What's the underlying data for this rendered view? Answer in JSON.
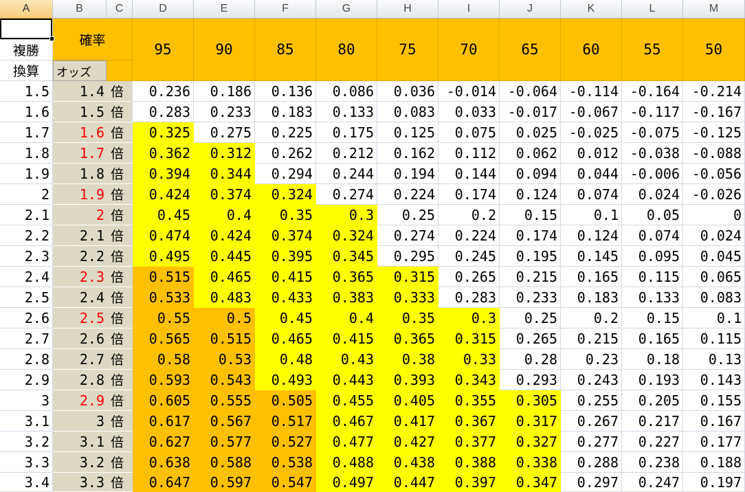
{
  "columns": [
    "A",
    "B",
    "C",
    "D",
    "E",
    "F",
    "G",
    "H",
    "I",
    "J",
    "K",
    "L",
    "M"
  ],
  "header": {
    "probability_label": "確率",
    "label_fukusho": "複勝",
    "label_kansan": "換算",
    "odds_label": "オッズ",
    "probabilities": [
      95,
      90,
      85,
      80,
      75,
      70,
      65,
      60,
      55,
      50
    ]
  },
  "unit": "倍",
  "rows": [
    {
      "fukusho": 1.5,
      "odds": 1.4,
      "odds_color": "#000000",
      "values": [
        0.236,
        0.186,
        0.136,
        0.086,
        0.036,
        -0.014,
        -0.064,
        -0.114,
        -0.164,
        -0.214
      ]
    },
    {
      "fukusho": 1.6,
      "odds": 1.5,
      "odds_color": "#000000",
      "values": [
        0.283,
        0.233,
        0.183,
        0.133,
        0.083,
        0.033,
        -0.017,
        -0.067,
        -0.117,
        -0.167
      ]
    },
    {
      "fukusho": 1.7,
      "odds": 1.6,
      "odds_color": "#FF0000",
      "values": [
        0.325,
        0.275,
        0.225,
        0.175,
        0.125,
        0.075,
        0.025,
        -0.025,
        -0.075,
        -0.125
      ]
    },
    {
      "fukusho": 1.8,
      "odds": 1.7,
      "odds_color": "#FF0000",
      "values": [
        0.362,
        0.312,
        0.262,
        0.212,
        0.162,
        0.112,
        0.062,
        0.012,
        -0.038,
        -0.088
      ]
    },
    {
      "fukusho": 1.9,
      "odds": 1.8,
      "odds_color": "#000000",
      "values": [
        0.394,
        0.344,
        0.294,
        0.244,
        0.194,
        0.144,
        0.094,
        0.044,
        -0.006,
        -0.056
      ]
    },
    {
      "fukusho": 2,
      "odds": 1.9,
      "odds_color": "#FF0000",
      "values": [
        0.424,
        0.374,
        0.324,
        0.274,
        0.224,
        0.174,
        0.124,
        0.074,
        0.024,
        -0.026
      ]
    },
    {
      "fukusho": 2.1,
      "odds": 2,
      "odds_color": "#FF0000",
      "values": [
        0.45,
        0.4,
        0.35,
        0.3,
        0.25,
        0.2,
        0.15,
        0.1,
        0.05,
        0
      ]
    },
    {
      "fukusho": 2.2,
      "odds": 2.1,
      "odds_color": "#000000",
      "values": [
        0.474,
        0.424,
        0.374,
        0.324,
        0.274,
        0.224,
        0.174,
        0.124,
        0.074,
        0.024
      ]
    },
    {
      "fukusho": 2.3,
      "odds": 2.2,
      "odds_color": "#000000",
      "values": [
        0.495,
        0.445,
        0.395,
        0.345,
        0.295,
        0.245,
        0.195,
        0.145,
        0.095,
        0.045
      ]
    },
    {
      "fukusho": 2.4,
      "odds": 2.3,
      "odds_color": "#FF0000",
      "values": [
        0.515,
        0.465,
        0.415,
        0.365,
        0.315,
        0.265,
        0.215,
        0.165,
        0.115,
        0.065
      ]
    },
    {
      "fukusho": 2.5,
      "odds": 2.4,
      "odds_color": "#000000",
      "values": [
        0.533,
        0.483,
        0.433,
        0.383,
        0.333,
        0.283,
        0.233,
        0.183,
        0.133,
        0.083
      ]
    },
    {
      "fukusho": 2.6,
      "odds": 2.5,
      "odds_color": "#FF0000",
      "values": [
        0.55,
        0.5,
        0.45,
        0.4,
        0.35,
        0.3,
        0.25,
        0.2,
        0.15,
        0.1
      ]
    },
    {
      "fukusho": 2.7,
      "odds": 2.6,
      "odds_color": "#000000",
      "values": [
        0.565,
        0.515,
        0.465,
        0.415,
        0.365,
        0.315,
        0.265,
        0.215,
        0.165,
        0.115
      ]
    },
    {
      "fukusho": 2.8,
      "odds": 2.7,
      "odds_color": "#000000",
      "values": [
        0.58,
        0.53,
        0.48,
        0.43,
        0.38,
        0.33,
        0.28,
        0.23,
        0.18,
        0.13
      ]
    },
    {
      "fukusho": 2.9,
      "odds": 2.8,
      "odds_color": "#000000",
      "values": [
        0.593,
        0.543,
        0.493,
        0.443,
        0.393,
        0.343,
        0.293,
        0.243,
        0.193,
        0.143
      ]
    },
    {
      "fukusho": 3,
      "odds": 2.9,
      "odds_color": "#FF0000",
      "values": [
        0.605,
        0.555,
        0.505,
        0.455,
        0.405,
        0.355,
        0.305,
        0.255,
        0.205,
        0.155
      ]
    },
    {
      "fukusho": 3.1,
      "odds": 3,
      "odds_color": "#000000",
      "values": [
        0.617,
        0.567,
        0.517,
        0.467,
        0.417,
        0.367,
        0.317,
        0.267,
        0.217,
        0.167
      ]
    },
    {
      "fukusho": 3.2,
      "odds": 3.1,
      "odds_color": "#000000",
      "values": [
        0.627,
        0.577,
        0.527,
        0.477,
        0.427,
        0.377,
        0.327,
        0.277,
        0.227,
        0.177
      ]
    },
    {
      "fukusho": 3.3,
      "odds": 3.2,
      "odds_color": "#000000",
      "values": [
        0.638,
        0.588,
        0.538,
        0.488,
        0.438,
        0.388,
        0.338,
        0.288,
        0.238,
        0.188
      ]
    },
    {
      "fukusho": 3.4,
      "odds": 3.3,
      "odds_color": "#000000",
      "values": [
        0.647,
        0.597,
        0.547,
        0.497,
        0.447,
        0.397,
        0.347,
        0.297,
        0.247,
        0.197
      ]
    }
  ],
  "colors": {
    "header_fill": "#FFC000",
    "high_fill": "#FFC000",
    "mid_fill": "#FFFF00",
    "odds_fill": "#DDD9C4",
    "odds_highlight_text": "#FF0000"
  }
}
